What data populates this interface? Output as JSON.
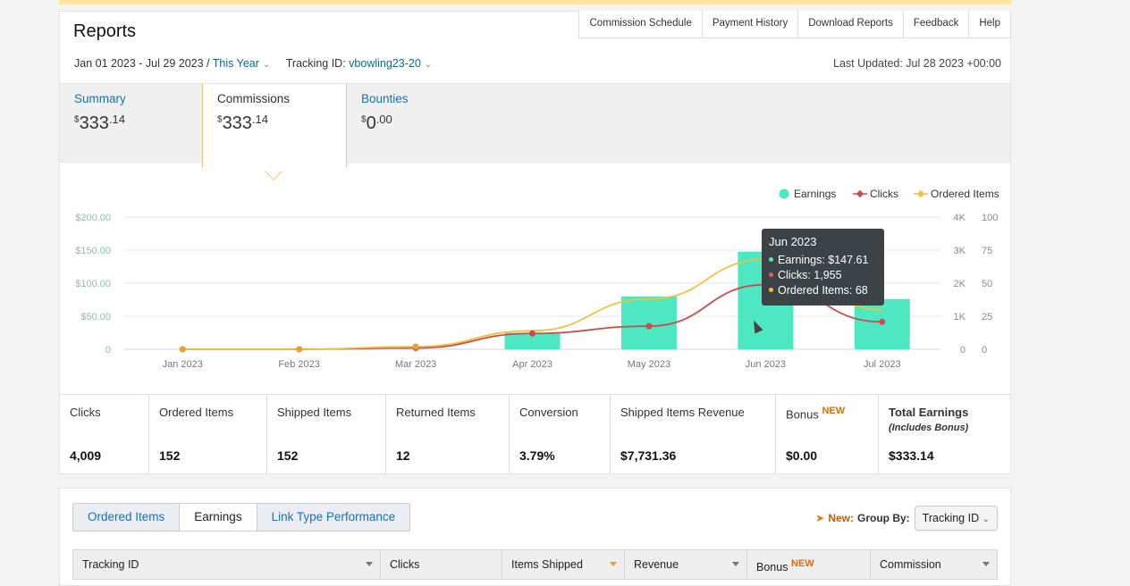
{
  "page": {
    "title": "Reports",
    "top_links": [
      "Commission Schedule",
      "Payment History",
      "Download Reports",
      "Feedback",
      "Help"
    ],
    "date_range": "Jan 01 2023 - Jul 29 2023 /",
    "date_preset": "This Year",
    "tracking_label": "Tracking ID:",
    "tracking_value": "vbowling23-20",
    "last_updated": "Last Updated: Jul 28 2023 +00:00"
  },
  "summary_tabs": [
    {
      "label": "Summary",
      "dollars": "333",
      "cents": ".14"
    },
    {
      "label": "Commissions",
      "dollars": "333",
      "cents": ".14"
    },
    {
      "label": "Bounties",
      "dollars": "0",
      "cents": ".00"
    }
  ],
  "currency_symbol": "$",
  "legend": {
    "earnings": "Earnings",
    "clicks": "Clicks",
    "ordered": "Ordered Items"
  },
  "colors": {
    "earnings": "#4de8c2",
    "clicks": "#c94c4c",
    "ordered": "#f0c040",
    "link": "#1f6fb0",
    "new_badge": "#d4700a"
  },
  "chart_data": {
    "type": "bar",
    "categories": [
      "Jan 2023",
      "Feb 2023",
      "Mar 2023",
      "Apr 2023",
      "May 2023",
      "Jun 2023",
      "Jul 2023"
    ],
    "series": [
      {
        "name": "Earnings",
        "type": "bar",
        "axis": "left",
        "values": [
          0,
          0,
          0,
          25,
          80,
          147.61,
          76
        ]
      },
      {
        "name": "Clicks",
        "type": "line",
        "axis": "right1",
        "values": [
          0,
          0,
          40,
          480,
          700,
          1955,
          830
        ]
      },
      {
        "name": "Ordered Items",
        "type": "line",
        "axis": "right2",
        "values": [
          0,
          0,
          2,
          14,
          38,
          68,
          30
        ]
      }
    ],
    "y_left": {
      "ticks": [
        "0",
        "$50.00",
        "$100.00",
        "$150.00",
        "$200.00"
      ],
      "range": [
        0,
        200
      ]
    },
    "y_right1": {
      "ticks": [
        "0",
        "1K",
        "2K",
        "3K",
        "4K"
      ],
      "range": [
        0,
        4000
      ]
    },
    "y_right2": {
      "ticks": [
        "0",
        "25",
        "50",
        "75",
        "100"
      ],
      "range": [
        0,
        100
      ]
    },
    "grid": true,
    "legend_position": "top-right"
  },
  "tooltip": {
    "title": "Jun 2023",
    "earnings": "Earnings: $147.61",
    "clicks": "Clicks: 1,955",
    "ordered": "Ordered Items: 68"
  },
  "stats": [
    {
      "label": "Clicks",
      "value": "4,009"
    },
    {
      "label": "Ordered Items",
      "value": "152"
    },
    {
      "label": "Shipped Items",
      "value": "152"
    },
    {
      "label": "Returned Items",
      "value": "12"
    },
    {
      "label": "Conversion",
      "value": "3.79%"
    },
    {
      "label": "Shipped Items Revenue",
      "value": "$7,731.36"
    },
    {
      "label": "Bonus",
      "badge": "NEW",
      "value": "$0.00"
    },
    {
      "label": "Total Earnings",
      "sub": "(Includes Bonus)",
      "value": "$333.14"
    }
  ],
  "bottom": {
    "tabs": [
      "Ordered Items",
      "Earnings",
      "Link Type Performance"
    ],
    "group_new": "New:",
    "group_label": "Group By:",
    "group_value": "Tracking ID",
    "columns": [
      "Tracking ID",
      "Clicks",
      "Items Shipped",
      "Revenue",
      "Bonus",
      "Commission"
    ],
    "bonus_badge": "NEW"
  }
}
